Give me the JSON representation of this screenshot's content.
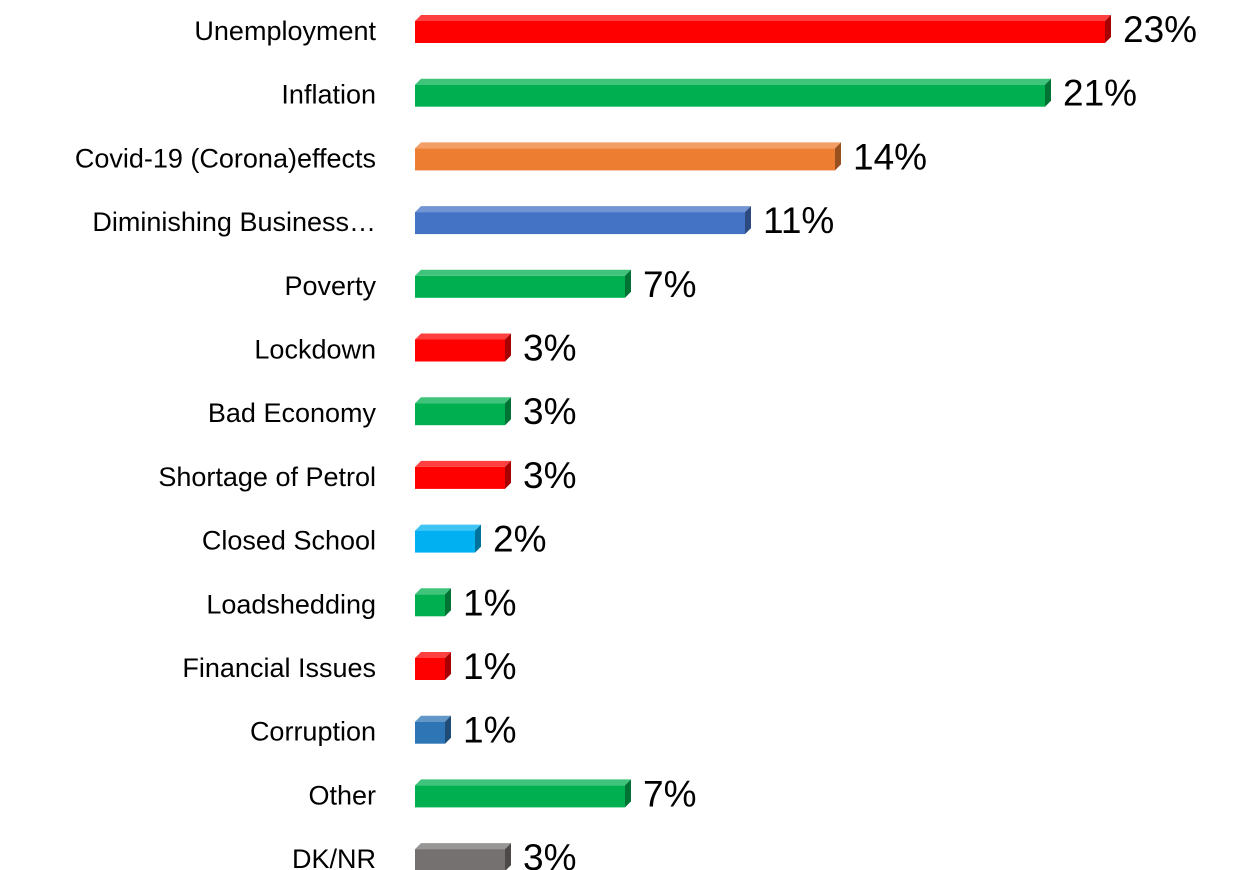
{
  "chart_data": {
    "type": "bar",
    "orientation": "horizontal",
    "title": "",
    "xlabel": "",
    "ylabel": "",
    "grid": false,
    "legend": "none",
    "xlim": [
      0,
      23
    ],
    "categories": [
      "Unemployment",
      "Inflation",
      "Covid-19 (Corona)effects",
      "Diminishing Business…",
      "Poverty",
      "Lockdown",
      "Bad Economy",
      "Shortage of Petrol",
      "Closed School",
      "Loadshedding",
      "Financial Issues",
      "Corruption",
      "Other",
      "DK/NR"
    ],
    "values": [
      23,
      21,
      14,
      11,
      7,
      3,
      3,
      3,
      2,
      1,
      1,
      1,
      7,
      3
    ],
    "value_labels": [
      "23%",
      "21%",
      "14%",
      "11%",
      "7%",
      "3%",
      "3%",
      "3%",
      "2%",
      "1%",
      "1%",
      "1%",
      "7%",
      "3%"
    ],
    "colors": [
      "#ff0000",
      "#00b050",
      "#ed7d31",
      "#4472c4",
      "#00b050",
      "#ff0000",
      "#00b050",
      "#ff0000",
      "#00b0f0",
      "#00b050",
      "#ff0000",
      "#2e75b6",
      "#00b050",
      "#767171"
    ]
  }
}
